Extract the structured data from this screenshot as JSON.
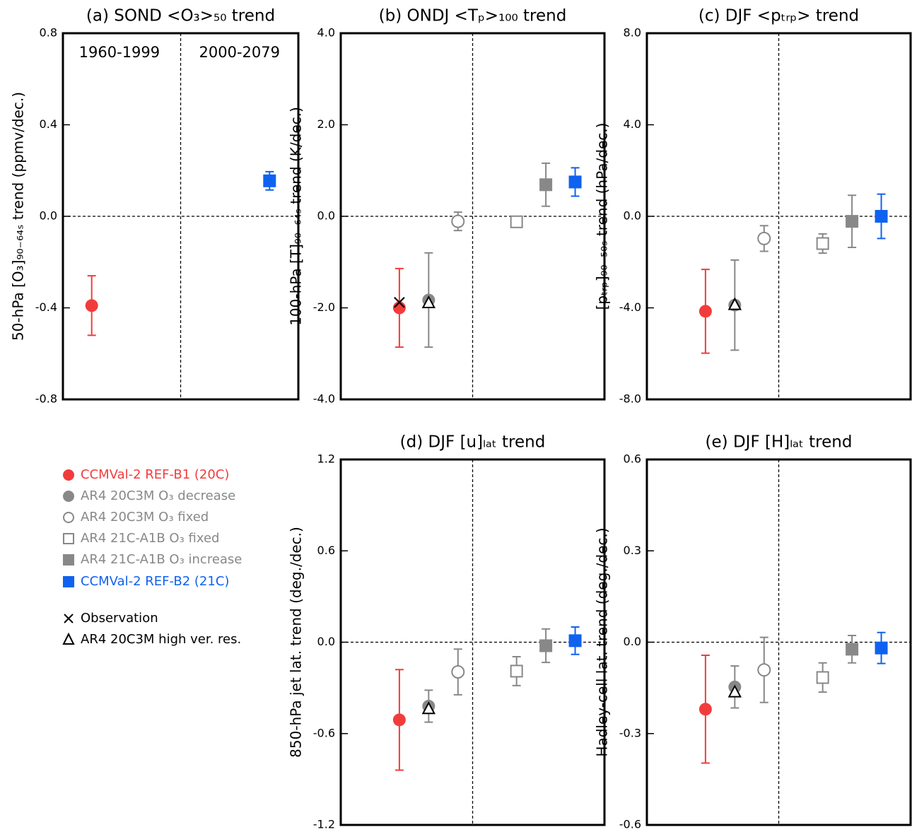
{
  "chart_data": [
    {
      "type": "scatter",
      "title": "(a) SOND <O₃>₅₀ trend",
      "y_label": "50-hPa [O₃]₉₀₋₆₄ₛ trend (ppmv/dec.)",
      "annotations": [
        "1960-1999",
        "2000-2079"
      ],
      "ylim": [
        -0.8,
        0.8
      ],
      "yticks": [
        {
          "value": -0.8,
          "label": "-0.8"
        },
        {
          "value": -0.4,
          "label": "-0.4"
        },
        {
          "value": 0,
          "label": "0.0"
        },
        {
          "value": 0.4,
          "label": "0.4"
        },
        {
          "value": 0.8,
          "label": "0.8"
        }
      ],
      "series": [
        {
          "name": "CCMVal-2 REF-B1 (20C)",
          "color": "#f23c3c",
          "marker": "circle-filled",
          "values": [
            -0.39
          ],
          "errors": [
            0.13
          ]
        },
        {
          "name": "AR4 20C3M O₃ decrease",
          "color": "#888888",
          "marker": "circle-filled",
          "values": [
            null
          ],
          "errors": [
            null
          ]
        },
        {
          "name": "AR4 20C3M O₃ fixed",
          "color": "#888888",
          "marker": "circle-open",
          "values": [
            null
          ],
          "errors": [
            null
          ]
        },
        {
          "name": "AR4 21C-A1B O₃ fixed",
          "color": "#888888",
          "marker": "square-open",
          "values": [
            null
          ],
          "errors": [
            null
          ]
        },
        {
          "name": "AR4 21C-A1B O₃ increase",
          "color": "#888888",
          "marker": "square-filled",
          "values": [
            null
          ],
          "errors": [
            null
          ]
        },
        {
          "name": "CCMVal-2 REF-B2 (21C)",
          "color": "#0f62f0",
          "marker": "square-filled",
          "values": [
            0.155
          ],
          "errors": [
            0.04
          ]
        },
        {
          "name": "Observation",
          "color": "#000000",
          "marker": "x",
          "values": [
            null
          ],
          "errors": [
            null
          ]
        },
        {
          "name": "AR4 20C3M high ver. res.",
          "color": "#000000",
          "marker": "triangle",
          "values": [
            null
          ],
          "errors": [
            null
          ]
        }
      ]
    },
    {
      "type": "scatter",
      "title": "(b) ONDJ <Tₚ>₁₀₀ trend",
      "y_label": "100-hPa [T]₉₀₋₆₄ₛ trend (K/dec.)",
      "ylim": [
        -4,
        4
      ],
      "yticks": [
        {
          "value": -4,
          "label": "-4.0"
        },
        {
          "value": -2,
          "label": "-2.0"
        },
        {
          "value": 0,
          "label": "0.0"
        },
        {
          "value": 2,
          "label": "2.0"
        },
        {
          "value": 4,
          "label": "4.0"
        }
      ],
      "series": [
        {
          "name": "CCMVal-2 REF-B1 (20C)",
          "color": "#f23c3c",
          "marker": "circle-filled",
          "values": [
            -2.0
          ],
          "errors": [
            0.86
          ]
        },
        {
          "name": "AR4 20C3M O₃ decrease",
          "color": "#888888",
          "marker": "circle-filled",
          "values": [
            -1.83
          ],
          "errors": [
            1.03
          ]
        },
        {
          "name": "AR4 20C3M O₃ fixed",
          "color": "#888888",
          "marker": "circle-open",
          "values": [
            -0.11
          ],
          "errors": [
            0.2
          ]
        },
        {
          "name": "AR4 21C-A1B O₃ fixed",
          "color": "#888888",
          "marker": "square-open",
          "values": [
            -0.12
          ],
          "errors": [
            0.05
          ]
        },
        {
          "name": "AR4 21C-A1B O₃ increase",
          "color": "#888888",
          "marker": "square-filled",
          "values": [
            0.69
          ],
          "errors": [
            0.47
          ]
        },
        {
          "name": "CCMVal-2 REF-B2 (21C)",
          "color": "#0f62f0",
          "marker": "square-filled",
          "values": [
            0.75
          ],
          "errors": [
            0.31
          ]
        },
        {
          "name": "Observation",
          "color": "#000000",
          "marker": "x",
          "values": [
            -1.88
          ],
          "errors": [
            null
          ]
        },
        {
          "name": "AR4 20C3M high ver. res.",
          "color": "#000000",
          "marker": "triangle",
          "values": [
            -1.9
          ],
          "errors": [
            null
          ]
        }
      ]
    },
    {
      "type": "scatter",
      "title": "(c) DJF <pₜᵣₚ> trend",
      "y_label": "[pₜᵣₚ]₉₀₋₅₀ₛ trend (hPa/dec.)",
      "ylim": [
        -8,
        8
      ],
      "yticks": [
        {
          "value": -8,
          "label": "-8.0"
        },
        {
          "value": -4,
          "label": "-4.0"
        },
        {
          "value": 0,
          "label": "0.0"
        },
        {
          "value": 4,
          "label": "4.0"
        },
        {
          "value": 8,
          "label": "8.0"
        }
      ],
      "series": [
        {
          "name": "CCMVal-2 REF-B1 (20C)",
          "color": "#f23c3c",
          "marker": "circle-filled",
          "values": [
            -4.15
          ],
          "errors": [
            1.83
          ]
        },
        {
          "name": "AR4 20C3M O₃ decrease",
          "color": "#888888",
          "marker": "circle-filled",
          "values": [
            -3.88
          ],
          "errors": [
            1.97
          ]
        },
        {
          "name": "AR4 20C3M O₃ fixed",
          "color": "#888888",
          "marker": "circle-open",
          "values": [
            -0.97
          ],
          "errors": [
            0.56
          ]
        },
        {
          "name": "AR4 21C-A1B O₃ fixed",
          "color": "#888888",
          "marker": "square-open",
          "values": [
            -1.19
          ],
          "errors": [
            0.42
          ]
        },
        {
          "name": "AR4 21C-A1B O₃ increase",
          "color": "#888888",
          "marker": "square-filled",
          "values": [
            -0.22
          ],
          "errors": [
            1.14
          ]
        },
        {
          "name": "CCMVal-2 REF-B2 (21C)",
          "color": "#0f62f0",
          "marker": "square-filled",
          "values": [
            0
          ],
          "errors": [
            0.97
          ]
        },
        {
          "name": "Observation",
          "color": "#000000",
          "marker": "x",
          "values": [
            null
          ],
          "errors": [
            null
          ]
        },
        {
          "name": "AR4 20C3M high ver. res.",
          "color": "#000000",
          "marker": "triangle",
          "values": [
            -3.88
          ],
          "errors": [
            null
          ]
        }
      ]
    },
    {
      "type": "scatter",
      "title": "(d) DJF [u]ₗₐₜ trend",
      "y_label": "850-hPa jet lat. trend (deg./dec.)",
      "ylim": [
        -1.2,
        1.2
      ],
      "yticks": [
        {
          "value": -1.2,
          "label": "-1.2"
        },
        {
          "value": -0.6,
          "label": "-0.6"
        },
        {
          "value": 0,
          "label": "0.0"
        },
        {
          "value": 0.6,
          "label": "0.6"
        },
        {
          "value": 1.2,
          "label": "1.2"
        }
      ],
      "series": [
        {
          "name": "CCMVal-2 REF-B1 (20C)",
          "color": "#f23c3c",
          "marker": "circle-filled",
          "values": [
            -0.51
          ],
          "errors": [
            0.33
          ]
        },
        {
          "name": "AR4 20C3M O₃ decrease",
          "color": "#888888",
          "marker": "circle-filled",
          "values": [
            -0.42
          ],
          "errors": [
            0.105
          ]
        },
        {
          "name": "AR4 20C3M O₃ fixed",
          "color": "#888888",
          "marker": "circle-open",
          "values": [
            -0.195
          ],
          "errors": [
            0.15
          ]
        },
        {
          "name": "AR4 21C-A1B O₃ fixed",
          "color": "#888888",
          "marker": "square-open",
          "values": [
            -0.19
          ],
          "errors": [
            0.095
          ]
        },
        {
          "name": "AR4 21C-A1B O₃ increase",
          "color": "#888888",
          "marker": "square-filled",
          "values": [
            -0.023
          ],
          "errors": [
            0.11
          ]
        },
        {
          "name": "CCMVal-2 REF-B2 (21C)",
          "color": "#0f62f0",
          "marker": "square-filled",
          "values": [
            0.01
          ],
          "errors": [
            0.09
          ]
        },
        {
          "name": "Observation",
          "color": "#000000",
          "marker": "x",
          "values": [
            null
          ],
          "errors": [
            null
          ]
        },
        {
          "name": "AR4 20C3M high ver. res.",
          "color": "#000000",
          "marker": "triangle",
          "values": [
            -0.44
          ],
          "errors": [
            null
          ]
        }
      ]
    },
    {
      "type": "scatter",
      "title": "(e) DJF [H]ₗₐₜ trend",
      "y_label": "Hadley-cell lat. trend (deg./dec.)",
      "ylim": [
        -0.6,
        0.6
      ],
      "yticks": [
        {
          "value": -0.6,
          "label": "-0.6"
        },
        {
          "value": -0.3,
          "label": "-0.3"
        },
        {
          "value": 0,
          "label": "0.0"
        },
        {
          "value": 0.3,
          "label": "0.3"
        },
        {
          "value": 0.6,
          "label": "0.6"
        }
      ],
      "series": [
        {
          "name": "CCMVal-2 REF-B1 (20C)",
          "color": "#f23c3c",
          "marker": "circle-filled",
          "values": [
            -0.22
          ],
          "errors": [
            0.177
          ]
        },
        {
          "name": "AR4 20C3M O₃ decrease",
          "color": "#888888",
          "marker": "circle-filled",
          "values": [
            -0.147
          ],
          "errors": [
            0.069
          ]
        },
        {
          "name": "AR4 20C3M O₃ fixed",
          "color": "#888888",
          "marker": "circle-open",
          "values": [
            -0.091
          ],
          "errors": [
            0.107
          ]
        },
        {
          "name": "AR4 21C-A1B O₃ fixed",
          "color": "#888888",
          "marker": "square-open",
          "values": [
            -0.116
          ],
          "errors": [
            0.048
          ]
        },
        {
          "name": "AR4 21C-A1B O₃ increase",
          "color": "#888888",
          "marker": "square-filled",
          "values": [
            -0.023
          ],
          "errors": [
            0.045
          ]
        },
        {
          "name": "CCMVal-2 REF-B2 (21C)",
          "color": "#0f62f0",
          "marker": "square-filled",
          "values": [
            -0.019
          ],
          "errors": [
            0.051
          ]
        },
        {
          "name": "Observation",
          "color": "#000000",
          "marker": "x",
          "values": [
            null
          ],
          "errors": [
            null
          ]
        },
        {
          "name": "AR4 20C3M high ver. res.",
          "color": "#000000",
          "marker": "triangle",
          "values": [
            -0.165
          ],
          "errors": [
            null
          ]
        }
      ]
    }
  ]
}
